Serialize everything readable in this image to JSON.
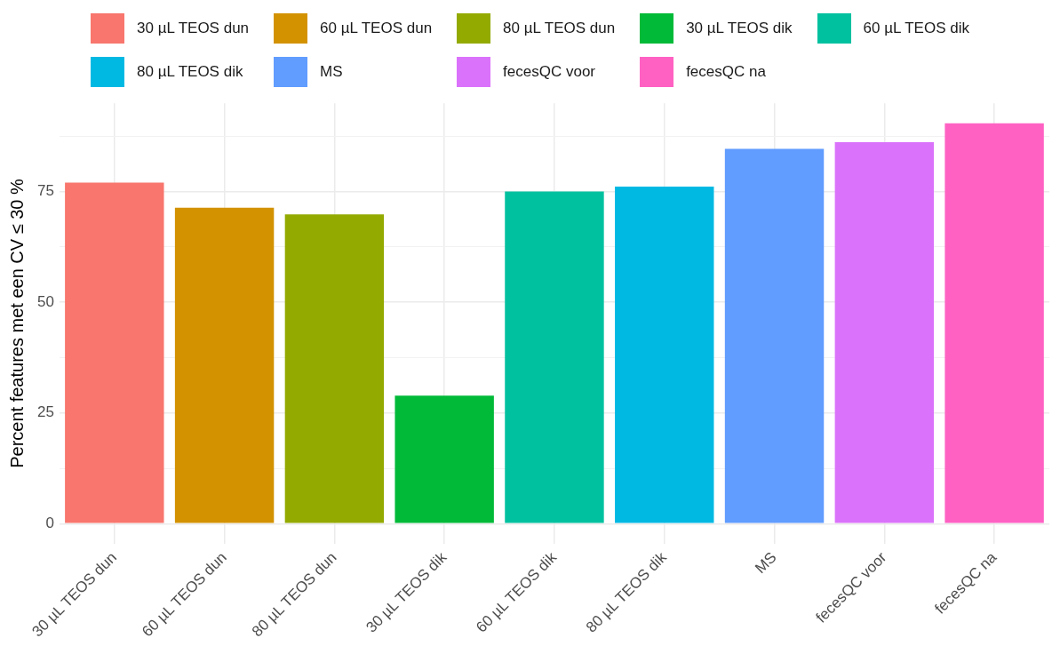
{
  "chart_data": {
    "type": "bar",
    "ylabel": "Percent features met een CV ≤ 30 %",
    "categories": [
      "30 µL TEOS dun",
      "60 µL TEOS dun",
      "80 µL TEOS dun",
      "30 µL TEOS dik",
      "60 µL TEOS dik",
      "80 µL TEOS dik",
      "MS",
      "fecesQC voor",
      "fecesQC na"
    ],
    "series": [
      {
        "name": "30 µL TEOS dun",
        "color": "#f8766d",
        "values": [
          77.0,
          null,
          null,
          null,
          null,
          null,
          null,
          null,
          null
        ]
      },
      {
        "name": "60 µL TEOS dun",
        "color": "#d39200",
        "values": [
          null,
          71.3,
          null,
          null,
          null,
          null,
          null,
          null,
          null
        ]
      },
      {
        "name": "80 µL TEOS dun",
        "color": "#93aa00",
        "values": [
          null,
          null,
          69.8,
          null,
          null,
          null,
          null,
          null,
          null
        ]
      },
      {
        "name": "30 µL TEOS dik",
        "color": "#00ba38",
        "values": [
          null,
          null,
          null,
          28.9,
          null,
          null,
          null,
          null,
          null
        ]
      },
      {
        "name": "60 µL TEOS dik",
        "color": "#00c19f",
        "values": [
          null,
          null,
          null,
          null,
          75.0,
          null,
          null,
          null,
          null
        ]
      },
      {
        "name": "80 µL TEOS dik",
        "color": "#00b9e3",
        "values": [
          null,
          null,
          null,
          null,
          null,
          76.1,
          null,
          null,
          null
        ]
      },
      {
        "name": "MS",
        "color": "#619cff",
        "values": [
          null,
          null,
          null,
          null,
          null,
          null,
          84.6,
          null,
          null
        ]
      },
      {
        "name": "fecesQC voor",
        "color": "#db72fb",
        "values": [
          null,
          null,
          null,
          null,
          null,
          null,
          null,
          86.1,
          null
        ]
      },
      {
        "name": "fecesQC na",
        "color": "#ff61c3",
        "values": [
          null,
          null,
          null,
          null,
          null,
          null,
          null,
          null,
          90.4
        ]
      }
    ],
    "ylim": [
      -4.5,
      94.9
    ],
    "yticks": [
      0,
      {
        "value": 12.5,
        "label": null
      },
      25,
      {
        "value": 37.5,
        "label": null
      },
      50,
      {
        "value": 62.5,
        "label": null
      },
      75,
      {
        "value": 87.5,
        "label": null
      }
    ],
    "grid": true,
    "legend": "top"
  }
}
